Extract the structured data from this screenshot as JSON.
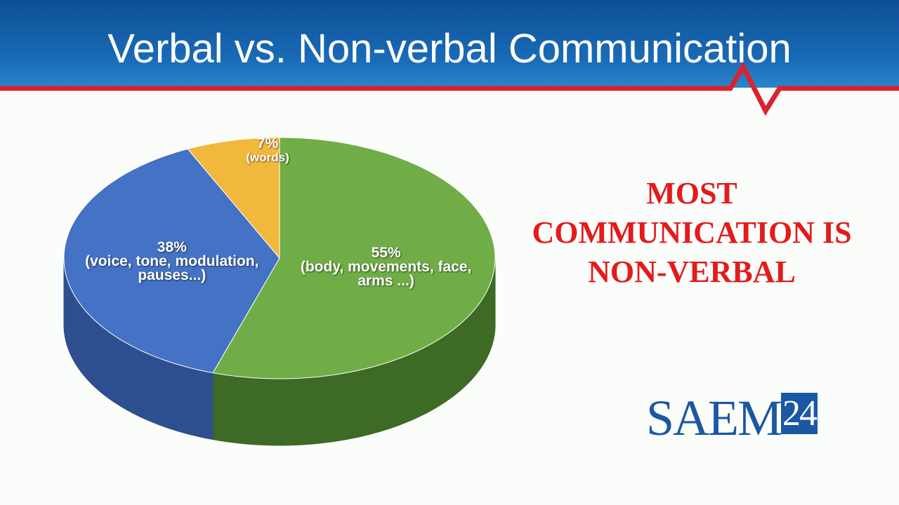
{
  "slide": {
    "title": "Verbal vs. Non-verbal Communication",
    "callout": "MOST COMMUNICATION IS NON-VERBAL",
    "logo": {
      "name": "SAEM",
      "year": "24"
    }
  },
  "chart_data": {
    "type": "pie",
    "categories": [
      "(body, movements, face, arms ...)",
      "(voice, tone, modulation, pauses...)",
      "(words)"
    ],
    "values": [
      55,
      38,
      7
    ],
    "value_labels": [
      "55%",
      "38%",
      "7%"
    ],
    "colors": [
      "#70ad47",
      "#4472c4",
      "#f2b83c"
    ],
    "side_colors": [
      "#3d6a24",
      "#2d4f8f",
      "#b88520"
    ]
  }
}
